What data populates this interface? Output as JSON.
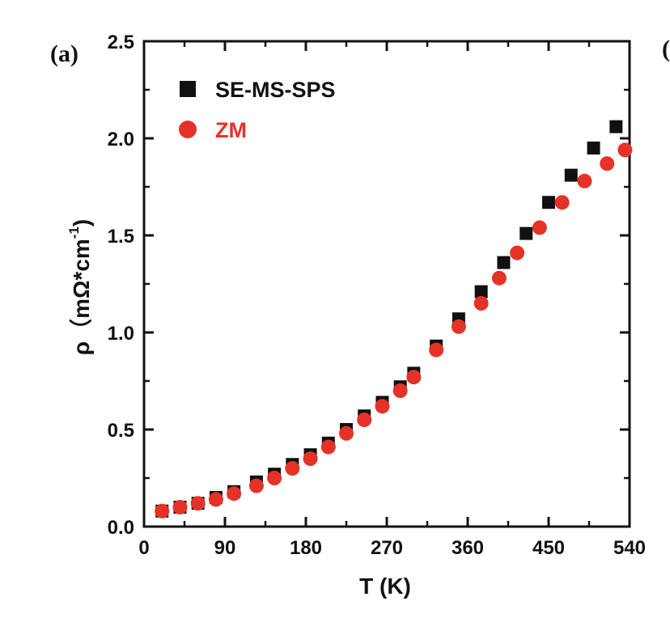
{
  "panel_label": "(a)",
  "chart_data": {
    "type": "scatter",
    "xlabel": "T (K)",
    "ylabel": "ρ（mΩ*cm-1)",
    "ylabel_parts": {
      "main": "ρ（mΩ*cm",
      "sup": "-1",
      "close": ")"
    },
    "xlim": [
      0,
      540
    ],
    "ylim": [
      0,
      2.5
    ],
    "x_ticks": [
      "0",
      "90",
      "180",
      "270",
      "360",
      "450",
      "540"
    ],
    "y_ticks": [
      "0.0",
      "0.5",
      "1.0",
      "1.5",
      "2.0",
      "2.5"
    ],
    "legend_position": "top-left",
    "series": [
      {
        "name": "SE-MS-SPS",
        "marker": "square",
        "color": "#111111",
        "x": [
          20,
          40,
          60,
          80,
          100,
          125,
          145,
          165,
          185,
          205,
          225,
          245,
          265,
          285,
          300,
          325,
          350,
          375,
          400,
          425,
          450,
          475,
          500,
          525
        ],
        "y": [
          0.08,
          0.1,
          0.12,
          0.15,
          0.18,
          0.23,
          0.27,
          0.32,
          0.37,
          0.43,
          0.5,
          0.57,
          0.64,
          0.72,
          0.79,
          0.93,
          1.07,
          1.21,
          1.36,
          1.51,
          1.67,
          1.81,
          1.95,
          2.06
        ]
      },
      {
        "name": "ZM",
        "marker": "circle",
        "color": "#e53228",
        "x": [
          20,
          40,
          60,
          80,
          100,
          125,
          145,
          165,
          185,
          205,
          225,
          245,
          265,
          285,
          300,
          325,
          350,
          375,
          395,
          415,
          440,
          465,
          490,
          515,
          535
        ],
        "y": [
          0.08,
          0.1,
          0.12,
          0.14,
          0.17,
          0.21,
          0.25,
          0.3,
          0.35,
          0.41,
          0.48,
          0.55,
          0.62,
          0.7,
          0.77,
          0.91,
          1.03,
          1.15,
          1.28,
          1.41,
          1.54,
          1.67,
          1.78,
          1.87,
          1.94
        ]
      }
    ]
  }
}
